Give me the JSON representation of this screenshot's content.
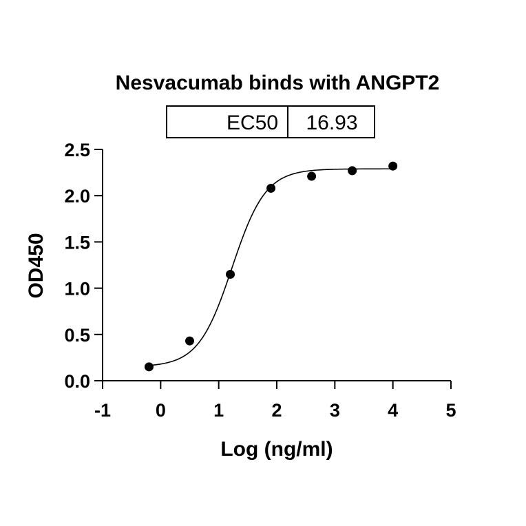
{
  "chart_data": {
    "type": "scatter",
    "title": "Nesvacumab binds with ANGPT2",
    "xlabel": "Log (ng/ml)",
    "ylabel": "OD450",
    "xlim": [
      -1,
      5
    ],
    "ylim": [
      0,
      2.5
    ],
    "x_ticks": [
      "-1",
      "0",
      "1",
      "2",
      "3",
      "4",
      "5"
    ],
    "y_ticks": [
      "0.0",
      "0.5",
      "1.0",
      "1.5",
      "2.0",
      "2.5"
    ],
    "points": {
      "x": [
        -0.2,
        0.5,
        1.2,
        1.9,
        2.6,
        3.3,
        4.0
      ],
      "y": [
        0.15,
        0.43,
        1.15,
        2.08,
        2.21,
        2.27,
        2.32
      ]
    },
    "fit_curve": {
      "model": "4PL",
      "bottom": 0.15,
      "top": 2.29,
      "logEC50": 1.2287,
      "hill": 1.5,
      "x_range": [
        -0.2,
        4.0
      ]
    },
    "table": {
      "label": "EC50",
      "value": "16.93"
    },
    "grid": false,
    "legend": "none"
  }
}
